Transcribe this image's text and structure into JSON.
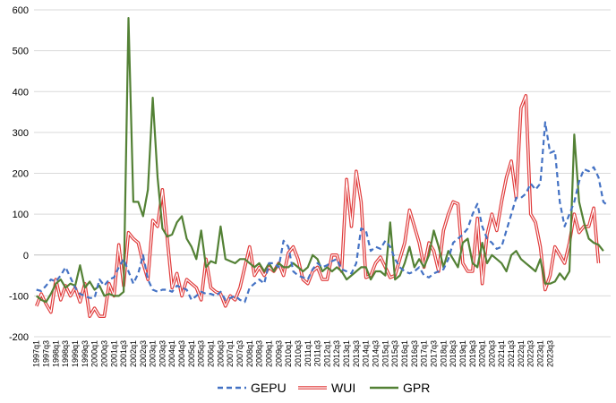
{
  "chart_data": {
    "type": "line",
    "title": "",
    "xlabel": "",
    "ylabel": "",
    "ylim": [
      -200,
      600
    ],
    "y_ticks": [
      -200,
      -100,
      0,
      100,
      200,
      300,
      400,
      500,
      600
    ],
    "grid": "horizontal",
    "legend_position": "bottom",
    "start_quarter": "1997q1",
    "x_tick_labels": [
      "1997q1",
      "1997q3",
      "1998q1",
      "1998q3",
      "1999q1",
      "1999q3",
      "2000q1",
      "2000q3",
      "2001q1",
      "2001q3",
      "2002q1",
      "2002q3",
      "2003q1",
      "2003q3",
      "2004q1",
      "2004q3",
      "2005q1",
      "2005q3",
      "2006q1",
      "2006q3",
      "2007q1",
      "2007q3",
      "2008q1",
      "2008q3",
      "2009q1",
      "2009q3",
      "2010q1",
      "2010q3",
      "2011q1",
      "2011q3",
      "2012q1",
      "2012q3",
      "2013q1",
      "2013q3",
      "2014q1",
      "2014q3",
      "2015q1",
      "2015q3",
      "2016q1",
      "2016q3",
      "2017q1",
      "2017q3",
      "2018q1",
      "2018q3",
      "2019q1",
      "2019q3",
      "2020q1",
      "2020q3",
      "2021q1",
      "2021q3",
      "2022q1",
      "2022q3",
      "2023q1",
      "2023q3"
    ],
    "series": [
      {
        "name": "GEPU",
        "color": "#4472C4",
        "style": "dashed",
        "values": [
          -85,
          -88,
          -75,
          -60,
          -65,
          -50,
          -30,
          -55,
          -80,
          -95,
          -100,
          -105,
          -105,
          -60,
          -75,
          -60,
          -55,
          -30,
          -10,
          -40,
          -70,
          -45,
          0,
          -60,
          -85,
          -90,
          -85,
          -85,
          -90,
          -75,
          -80,
          -85,
          -110,
          -100,
          -90,
          -95,
          -95,
          -100,
          -90,
          -110,
          -105,
          -100,
          -110,
          -115,
          -80,
          -70,
          -60,
          -70,
          -20,
          -20,
          -30,
          35,
          20,
          -40,
          -50,
          -55,
          -60,
          -35,
          -20,
          -30,
          -25,
          -15,
          -10,
          -35,
          -40,
          -45,
          -20,
          65,
          60,
          10,
          20,
          15,
          35,
          20,
          -10,
          -30,
          -40,
          -45,
          -40,
          -30,
          -50,
          -55,
          -45,
          -40,
          -35,
          -10,
          30,
          40,
          50,
          65,
          100,
          125,
          70,
          40,
          30,
          15,
          20,
          60,
          100,
          140,
          140,
          150,
          175,
          160,
          175,
          325,
          250,
          255,
          130,
          70,
          100,
          130,
          180,
          210,
          205,
          215,
          190,
          130,
          120
        ]
      },
      {
        "name": "WUI",
        "color": "#E03C3C",
        "style": "solid",
        "values": [
          -125,
          -95,
          -120,
          -140,
          -60,
          -110,
          -75,
          -100,
          -80,
          -115,
          -70,
          -150,
          -130,
          -150,
          -150,
          -70,
          -100,
          25,
          -75,
          55,
          40,
          30,
          -20,
          -60,
          85,
          70,
          160,
          40,
          -80,
          -45,
          -100,
          -60,
          -70,
          -80,
          -110,
          -10,
          -80,
          -90,
          -95,
          -125,
          -100,
          -110,
          -80,
          -30,
          20,
          -50,
          -30,
          -50,
          -30,
          -40,
          -20,
          -50,
          5,
          20,
          -10,
          -60,
          -70,
          -40,
          -30,
          -60,
          -60,
          0,
          0,
          -40,
          185,
          70,
          205,
          130,
          -55,
          -50,
          -20,
          -5,
          -30,
          -55,
          -50,
          -10,
          30,
          110,
          70,
          30,
          -30,
          30,
          10,
          -40,
          60,
          100,
          130,
          125,
          -20,
          -40,
          -40,
          90,
          -70,
          50,
          100,
          60,
          130,
          190,
          230,
          140,
          360,
          390,
          100,
          80,
          20,
          -85,
          -50,
          20,
          0,
          -20,
          30,
          100,
          55,
          70,
          70,
          115,
          -20
        ]
      },
      {
        "name": "GPR",
        "color": "#538135",
        "style": "solid",
        "values": [
          -100,
          -110,
          -115,
          -95,
          -70,
          -60,
          -80,
          -70,
          -75,
          -25,
          -80,
          -65,
          -85,
          -75,
          -100,
          -95,
          -100,
          -100,
          -90,
          580,
          130,
          130,
          95,
          160,
          385,
          190,
          65,
          45,
          50,
          80,
          95,
          40,
          20,
          -10,
          60,
          -30,
          -15,
          -20,
          70,
          -10,
          -15,
          -20,
          -10,
          -10,
          -20,
          -30,
          -20,
          -40,
          -20,
          -40,
          -20,
          -30,
          -30,
          -20,
          -30,
          -40,
          -30,
          0,
          -10,
          -40,
          -30,
          -40,
          -30,
          -40,
          -60,
          -50,
          -40,
          -30,
          -30,
          -60,
          -40,
          -40,
          -50,
          80,
          -60,
          -50,
          -20,
          20,
          -30,
          -10,
          -30,
          0,
          60,
          20,
          -30,
          10,
          -10,
          -30,
          30,
          40,
          -20,
          -30,
          30,
          -20,
          0,
          -10,
          -20,
          -40,
          0,
          10,
          -10,
          -20,
          -30,
          -40,
          -10,
          -70,
          -70,
          -65,
          -45,
          -60,
          -40,
          295,
          130,
          80,
          40,
          30,
          25,
          10
        ]
      }
    ]
  }
}
